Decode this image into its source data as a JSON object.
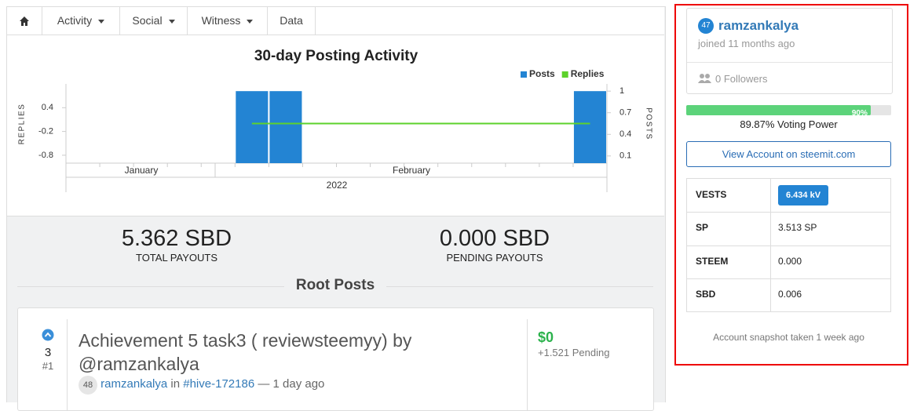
{
  "nav": {
    "tabs": [
      "Activity",
      "Social",
      "Witness",
      "Data"
    ]
  },
  "chart_data": {
    "type": "bar",
    "title": "30-day Posting Activity",
    "categories": [
      null,
      null,
      null,
      null,
      null,
      null,
      null,
      null,
      null,
      null,
      null,
      null,
      null,
      null,
      null,
      null
    ],
    "series": [
      {
        "name": "Posts",
        "color": "#2384d3",
        "axis": "y2",
        "values": [
          0,
          0,
          0,
          0,
          0,
          1,
          1,
          0,
          0,
          0,
          0,
          0,
          0,
          0,
          0,
          1
        ]
      },
      {
        "name": "Replies",
        "color": "#5dd22b",
        "type": "line",
        "values": [
          null,
          null,
          null,
          null,
          null,
          0,
          0,
          0,
          0,
          0,
          0,
          0,
          0,
          0,
          0,
          0
        ]
      }
    ],
    "ylabel": "REPLIES",
    "ylim": [
      -1,
      1
    ],
    "yticks": [
      0.4,
      -0.2,
      -0.8
    ],
    "y2label": "POSTS",
    "y2lim": [
      0,
      1.1
    ],
    "y2ticks": [
      1,
      0.7,
      0.4,
      0.1
    ],
    "x_group_labels": [
      "January",
      "February"
    ],
    "x_super_label": "2022",
    "legend": "top-right"
  },
  "stats": [
    {
      "value": "5.362 SBD",
      "label": "TOTAL PAYOUTS"
    },
    {
      "value": "0.000 SBD",
      "label": "PENDING PAYOUTS"
    }
  ],
  "section_title": "Root Posts",
  "post": {
    "votes": "3",
    "rank": "#1",
    "title": "Achievement 5 task3 ( reviewsteemyy) by @ramzankalya",
    "author_rep": "48",
    "author": "ramzankalya",
    "in": "in",
    "tag": "#hive-172186",
    "age": "— 1 day ago",
    "payout": "$0",
    "pending": "+1.521 Pending"
  },
  "profile": {
    "reputation": "47",
    "username": "ramzankalya",
    "joined": "joined 11 months ago",
    "followers": "0 Followers",
    "voting_power_bar": {
      "value": 90,
      "label": "90%"
    },
    "voting_power": "89.87% Voting Power",
    "button": "View Account on steemit.com",
    "table": {
      "rows": [
        [
          "VESTS",
          "6.434 kV"
        ],
        [
          "SP",
          "3.513 SP"
        ],
        [
          "STEEM",
          "0.000"
        ],
        [
          "SBD",
          "0.006"
        ]
      ]
    },
    "footer": "Account snapshot taken 1 week ago"
  }
}
